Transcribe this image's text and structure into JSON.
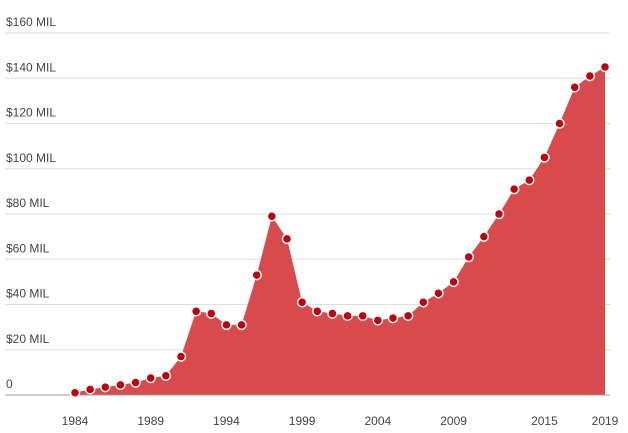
{
  "chart_data": {
    "type": "area",
    "x": [
      1984,
      1985,
      1986,
      1987,
      1988,
      1989,
      1990,
      1991,
      1992,
      1993,
      1994,
      1995,
      1996,
      1997,
      1998,
      1999,
      2000,
      2001,
      2002,
      2003,
      2004,
      2005,
      2006,
      2007,
      2008,
      2009,
      2010,
      2011,
      2012,
      2013,
      2014,
      2015,
      2016,
      2017,
      2018,
      2019
    ],
    "values": [
      1,
      2.5,
      3.5,
      4.5,
      5.5,
      7.5,
      8.5,
      17,
      37,
      36,
      31,
      31,
      53,
      79,
      69,
      41,
      37,
      36,
      35,
      35,
      33,
      34,
      35,
      41,
      45,
      50,
      61,
      70,
      80,
      91,
      95,
      105,
      120,
      136,
      141,
      145
    ],
    "color": "#d94a4c",
    "marker_color": "#c0000b",
    "xlim": [
      1984,
      2019
    ],
    "xticks": [
      1984,
      1989,
      1994,
      1999,
      2004,
      2009,
      2015,
      2019
    ],
    "ylim": [
      0,
      160
    ],
    "yticks": [
      0,
      {
        "value": 20,
        "label": "$20 MIL"
      },
      {
        "value": 40,
        "label": "$40 MIL"
      },
      {
        "value": 60,
        "label": "$60 MIL"
      },
      {
        "value": 80,
        "label": "$80 MIL"
      },
      {
        "value": 100,
        "label": "$100 MIL"
      },
      {
        "value": 120,
        "label": "$120 MIL"
      },
      {
        "value": 140,
        "label": "$140 MIL"
      },
      {
        "value": 160,
        "label": "$160 MIL"
      }
    ],
    "grid": true
  }
}
